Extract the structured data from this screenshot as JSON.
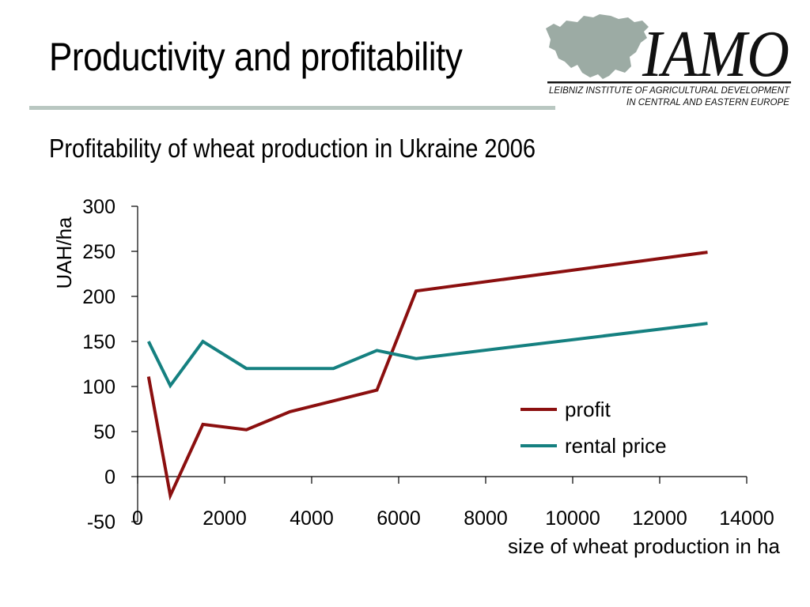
{
  "slide": {
    "title": "Productivity and profitability"
  },
  "logo": {
    "wordmark": "IAMO",
    "line1": "LEIBNIZ INSTITUTE OF AGRICULTURAL DEVELOPMENT",
    "line2": "IN CENTRAL AND EASTERN EUROPE",
    "map_color": "#9caba4"
  },
  "colors": {
    "profit": "#8b0f0f",
    "rental": "#158080",
    "title_rule": "#b9c7c1"
  },
  "chart_data": {
    "type": "line",
    "title": "Profitability of wheat production in Ukraine 2006",
    "xlabel": "size of wheat production in ha",
    "ylabel": "UAH/ha",
    "xlim": [
      0,
      14000
    ],
    "ylim": [
      -50,
      300
    ],
    "xticks": [
      0,
      2000,
      4000,
      6000,
      8000,
      10000,
      12000,
      14000
    ],
    "yticks": [
      -50,
      0,
      50,
      100,
      150,
      200,
      250,
      300
    ],
    "legend_position": "right",
    "series": [
      {
        "name": "profit",
        "color": "#8b0f0f",
        "points": [
          [
            250,
            111
          ],
          [
            750,
            -21
          ],
          [
            1500,
            58
          ],
          [
            2500,
            52
          ],
          [
            3500,
            72
          ],
          [
            5500,
            96
          ],
          [
            6400,
            206
          ],
          [
            13100,
            249
          ]
        ]
      },
      {
        "name": "rental price",
        "color": "#158080",
        "points": [
          [
            250,
            150
          ],
          [
            750,
            101
          ],
          [
            1500,
            150
          ],
          [
            2500,
            120
          ],
          [
            4500,
            120
          ],
          [
            5500,
            140
          ],
          [
            6400,
            131
          ],
          [
            13100,
            170
          ]
        ]
      }
    ]
  }
}
